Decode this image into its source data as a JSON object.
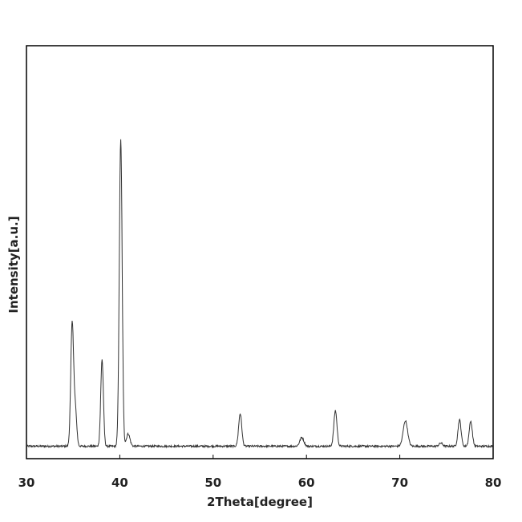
{
  "chart_data": {
    "type": "line",
    "title": "",
    "xlabel": "2Theta[degree]",
    "ylabel": "Intensity[a.u.]",
    "xlim": [
      30,
      80
    ],
    "ylim": [
      0,
      1000
    ],
    "grid": false,
    "legend": "none",
    "xticks": [
      "30",
      "40",
      "50",
      "60",
      "70",
      "80"
    ],
    "colors": {
      "line": "#333333",
      "frame": "#000000",
      "background": "#ffffff"
    },
    "baseline": 22,
    "peaks": [
      {
        "x": 34.9,
        "y": 400,
        "width": 0.32
      },
      {
        "x": 35.25,
        "y": 110,
        "width": 0.3
      },
      {
        "x": 38.1,
        "y": 280,
        "width": 0.3
      },
      {
        "x": 40.1,
        "y": 990,
        "width": 0.32
      },
      {
        "x": 40.9,
        "y": 40,
        "width": 0.4
      },
      {
        "x": 52.9,
        "y": 105,
        "width": 0.35
      },
      {
        "x": 59.5,
        "y": 28,
        "width": 0.45
      },
      {
        "x": 63.1,
        "y": 115,
        "width": 0.35
      },
      {
        "x": 70.6,
        "y": 82,
        "width": 0.5
      },
      {
        "x": 74.4,
        "y": 10,
        "width": 0.4
      },
      {
        "x": 76.4,
        "y": 85,
        "width": 0.35
      },
      {
        "x": 77.6,
        "y": 80,
        "width": 0.35
      }
    ]
  }
}
